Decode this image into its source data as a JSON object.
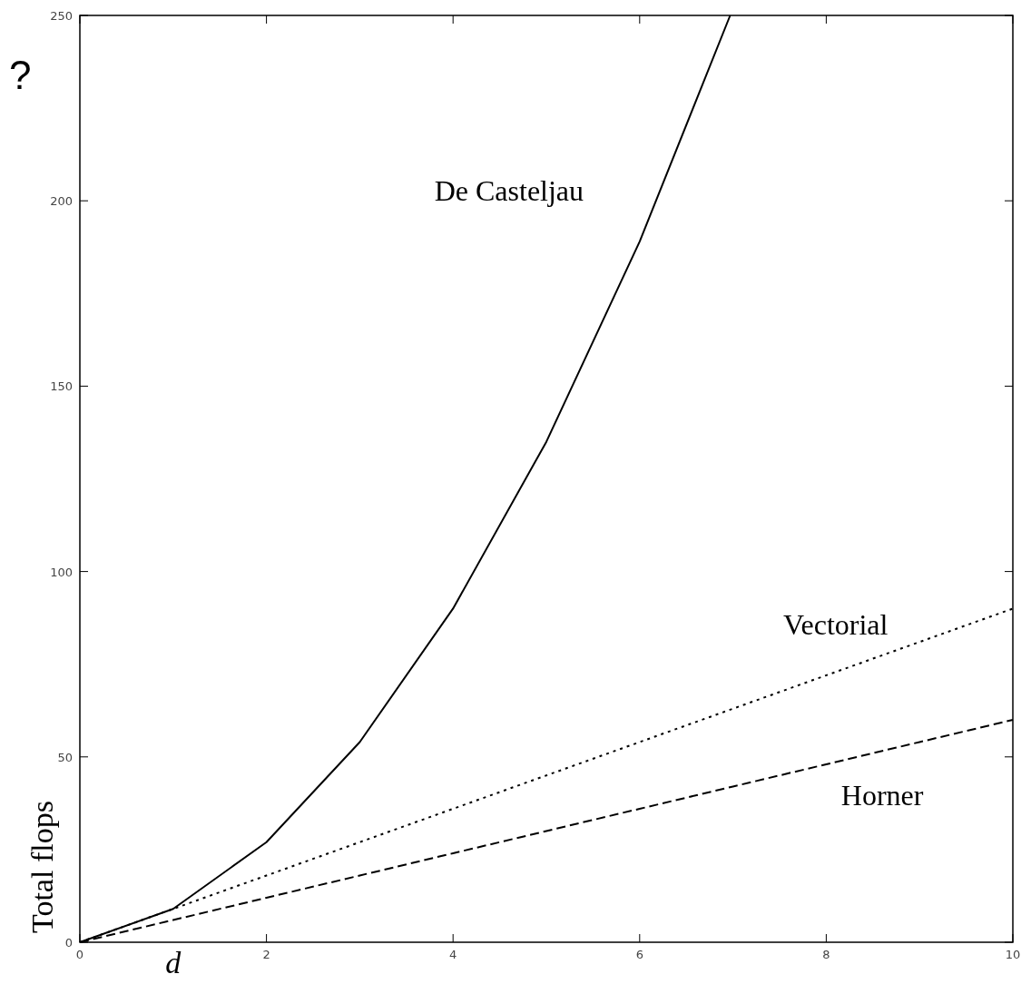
{
  "chart_data": {
    "type": "line",
    "xlabel": "d",
    "ylabel": "Total flops",
    "annotations": [
      "?"
    ],
    "xlim": [
      0,
      10
    ],
    "ylim": [
      0,
      250
    ],
    "xticks": [
      0,
      2,
      4,
      6,
      8,
      10
    ],
    "yticks": [
      0,
      50,
      100,
      150,
      200,
      250
    ],
    "marker": "none",
    "series": [
      {
        "name": "De Casteljau",
        "color": "#000000",
        "line_style": "solid",
        "x": [
          0,
          1,
          2,
          3,
          4,
          5,
          6,
          6.97
        ],
        "values": [
          0,
          9,
          27,
          54,
          90,
          135,
          189,
          250
        ]
      },
      {
        "name": "Vectorial",
        "color": "#000000",
        "line_style": "dotted",
        "x": [
          0,
          1,
          2,
          3,
          4,
          5,
          6,
          7,
          8,
          9,
          10
        ],
        "values": [
          0,
          9,
          18,
          27,
          36,
          45,
          54,
          63,
          72,
          81,
          90
        ]
      },
      {
        "name": "Horner",
        "color": "#000000",
        "line_style": "dashed",
        "x": [
          0,
          1,
          2,
          3,
          4,
          5,
          6,
          7,
          8,
          9,
          10
        ],
        "values": [
          0,
          6,
          12,
          18,
          24,
          30,
          36,
          42,
          48,
          54,
          60
        ]
      }
    ]
  }
}
